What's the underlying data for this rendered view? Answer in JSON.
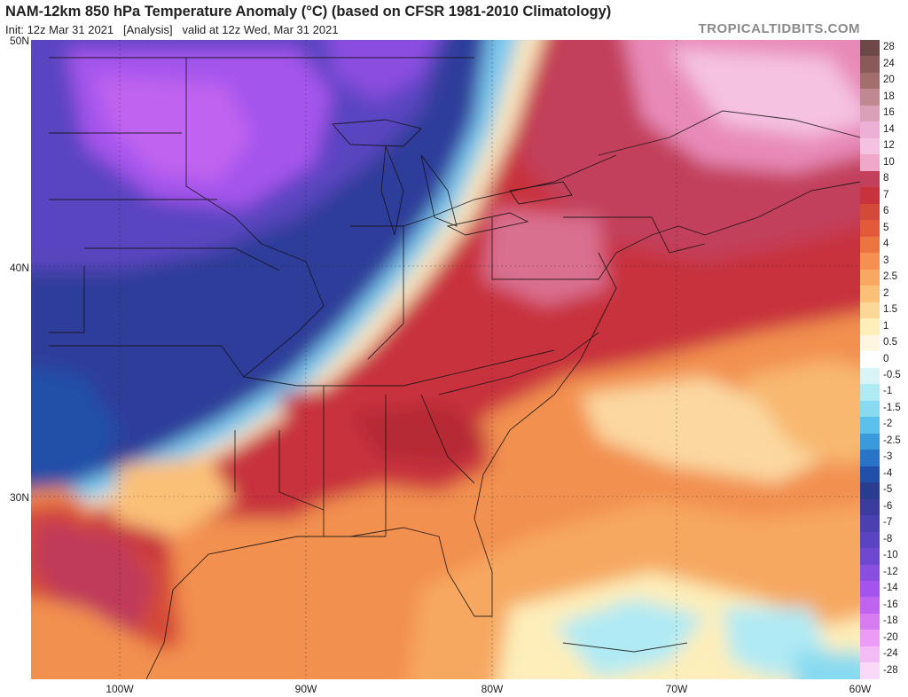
{
  "header": {
    "title": "NAM-12km 850 hPa Temperature Anomaly (°C) (based on CFSR 1981-2010 Climatology)",
    "init": "Init: 12z Mar 31 2021",
    "analysis": "[Analysis]",
    "valid": "valid at 12z Wed, Mar 31 2021",
    "brand": "TROPICALTIDBITS.COM"
  },
  "axes": {
    "lat_labels": [
      "50N",
      "40N",
      "30N"
    ],
    "lon_labels": [
      "100W",
      "90W",
      "80W",
      "70W",
      "60W"
    ]
  },
  "colorbar": {
    "labels": [
      "28",
      "24",
      "20",
      "18",
      "16",
      "14",
      "12",
      "10",
      "8",
      "7",
      "6",
      "5",
      "4",
      "3",
      "2.5",
      "2",
      "1.5",
      "1",
      "0.5",
      "0",
      "-0.5",
      "-1",
      "-1.5",
      "-2",
      "-2.5",
      "-3",
      "-4",
      "-5",
      "-6",
      "-7",
      "-8",
      "-10",
      "-12",
      "-14",
      "-16",
      "-18",
      "-20",
      "-24",
      "-28"
    ],
    "colors": [
      "#6e4848",
      "#8a5a5a",
      "#a56e6e",
      "#c08890",
      "#d9a0b8",
      "#ecb0d6",
      "#f5c2e2",
      "#f0a8c8",
      "#c2405c",
      "#c8323c",
      "#d44a38",
      "#e25a3a",
      "#ec7440",
      "#f59050",
      "#f8a860",
      "#fbc078",
      "#fcd898",
      "#fdeeba",
      "#fef6e0",
      "#ffffff",
      "#d8f4f6",
      "#b0eaf4",
      "#88daf0",
      "#5cc0ec",
      "#3a9adc",
      "#2a74c8",
      "#2050a8",
      "#2a3c90",
      "#3c3c9c",
      "#4a40b0",
      "#5a44c0",
      "#6e48d0",
      "#8a4ee0",
      "#a454ec",
      "#c064f0",
      "#d87cf2",
      "#ec9cf4",
      "#f4bcf6",
      "#fad8f8"
    ]
  },
  "colors": {
    "cold_core": "#3c3ca8",
    "cold_purple": "#8a4ee0",
    "warm_core": "#c8323c",
    "warm_pink": "#e88ab8",
    "mild_orange": "#f29050"
  }
}
